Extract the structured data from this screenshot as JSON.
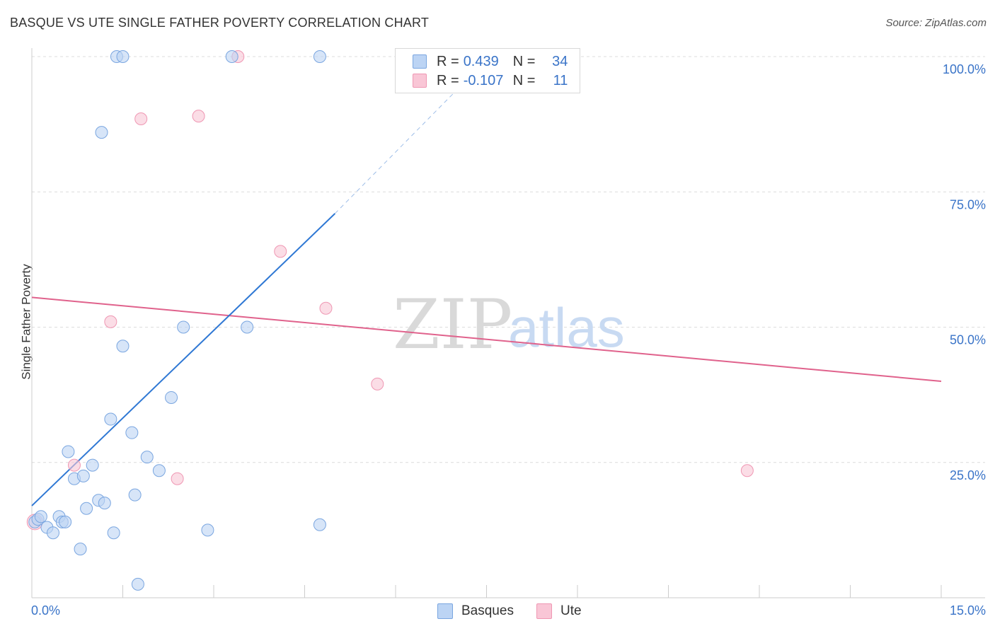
{
  "title": "BASQUE VS UTE SINGLE FATHER POVERTY CORRELATION CHART",
  "source": "Source: ZipAtlas.com",
  "legend": {
    "rows": [
      {
        "r_label": "R =",
        "r_value": "0.439",
        "n_label": "N =",
        "n_value": "34"
      },
      {
        "r_label": "R =",
        "r_value": "-0.107",
        "n_label": "N =",
        "n_value": "11"
      }
    ]
  },
  "bottom_legend": [
    "Basques",
    "Ute"
  ],
  "colors": {
    "basques_fill": "#bcd4f4",
    "basques_stroke": "#7aa6e0",
    "basques_line": "#2f78d4",
    "ute_fill": "#f9c6d6",
    "ute_stroke": "#ef97b3",
    "ute_line": "#e0628c",
    "tick_text": "#3a74c8",
    "watermark_zip": "#d9d9d9",
    "watermark_atlas": "#c8daf2"
  },
  "watermark": {
    "zip": "ZIP",
    "atlas": "atlas"
  },
  "chart_data": {
    "type": "scatter",
    "xlabel": "",
    "ylabel": "Single Father Poverty",
    "xlim": [
      0,
      15
    ],
    "ylim": [
      0,
      102
    ],
    "x_tick_labels": [
      "0.0%",
      "15.0%"
    ],
    "y_ticks": [
      25,
      50,
      75,
      100
    ],
    "y_tick_labels": [
      "25.0%",
      "50.0%",
      "75.0%",
      "100.0%"
    ],
    "grid": true,
    "series": [
      {
        "name": "Basques",
        "points": [
          [
            0.05,
            14.0
          ],
          [
            0.1,
            14.5
          ],
          [
            0.15,
            15.0
          ],
          [
            0.25,
            13.0
          ],
          [
            0.35,
            12.0
          ],
          [
            0.45,
            15.0
          ],
          [
            0.5,
            14.0
          ],
          [
            0.55,
            14.0
          ],
          [
            0.6,
            27.0
          ],
          [
            0.7,
            22.0
          ],
          [
            0.8,
            9.0
          ],
          [
            0.85,
            22.5
          ],
          [
            0.9,
            16.5
          ],
          [
            1.0,
            24.5
          ],
          [
            1.1,
            18.0
          ],
          [
            1.2,
            17.5
          ],
          [
            1.3,
            33.0
          ],
          [
            1.35,
            12.0
          ],
          [
            1.15,
            86.0
          ],
          [
            1.4,
            100.0
          ],
          [
            1.5,
            100.0
          ],
          [
            1.5,
            46.5
          ],
          [
            1.65,
            30.5
          ],
          [
            1.7,
            19.0
          ],
          [
            1.75,
            2.5
          ],
          [
            1.9,
            26.0
          ],
          [
            2.1,
            23.5
          ],
          [
            2.3,
            37.0
          ],
          [
            2.5,
            50.0
          ],
          [
            2.9,
            12.5
          ],
          [
            3.3,
            100.0
          ],
          [
            3.55,
            50.0
          ],
          [
            4.75,
            13.5
          ],
          [
            4.75,
            100.0
          ]
        ],
        "trend": {
          "x": [
            0,
            5.0
          ],
          "y": [
            17.0,
            71.0
          ],
          "dashed_to": [
            7.2,
            96.0
          ]
        }
      },
      {
        "name": "Ute",
        "points": [
          [
            0.05,
            14.0
          ],
          [
            0.7,
            24.5
          ],
          [
            1.3,
            51.0
          ],
          [
            1.8,
            88.5
          ],
          [
            2.4,
            22.0
          ],
          [
            2.75,
            89.0
          ],
          [
            3.4,
            100.0
          ],
          [
            4.1,
            64.0
          ],
          [
            4.85,
            53.5
          ],
          [
            5.7,
            39.5
          ],
          [
            11.8,
            23.5
          ]
        ],
        "trend": {
          "x": [
            0,
            15
          ],
          "y": [
            55.5,
            40.0
          ]
        }
      }
    ]
  }
}
